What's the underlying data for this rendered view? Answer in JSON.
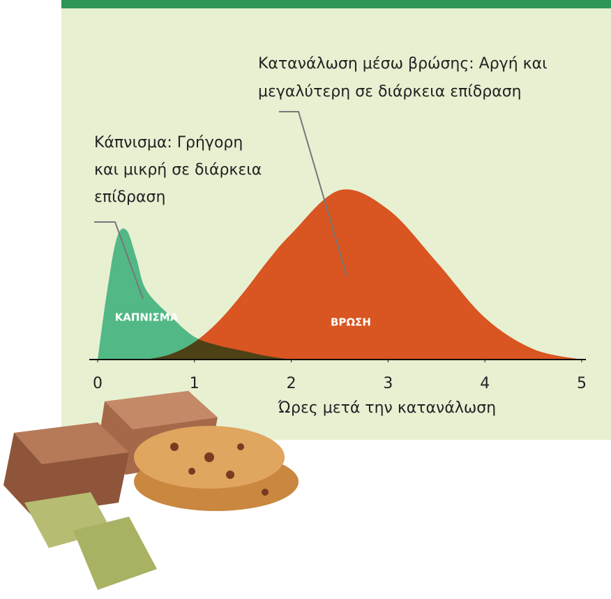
{
  "chart_data": {
    "type": "area",
    "x": [
      0,
      0.1,
      0.2,
      0.3,
      0.4,
      0.5,
      0.75,
      1,
      1.25,
      1.5,
      1.75,
      2,
      2.5,
      3,
      3.5,
      4,
      4.5,
      5
    ],
    "series": [
      {
        "name": "ΚΑΠΝΙΣΜΑ",
        "color": "#52b886",
        "values": [
          0,
          40,
          70,
          74,
          58,
          40,
          25,
          13,
          8,
          5,
          2,
          0,
          null,
          null,
          null,
          null,
          null,
          null
        ]
      },
      {
        "name": "ΒΡΩΣΗ",
        "color": "#ef5a28",
        "values": [
          null,
          null,
          null,
          null,
          null,
          0,
          3,
          10,
          22,
          38,
          56,
          72,
          97,
          86,
          56,
          24,
          6,
          0
        ]
      }
    ],
    "xlim": [
      0,
      5
    ],
    "xticks": [
      0,
      1,
      2,
      3,
      4,
      5
    ],
    "ylim": [
      0,
      100
    ],
    "x_label": "Ώρες μετά την κατανάλωση",
    "annotations": [
      {
        "lines": [
          "Κατανάλωση μέσω βρώσης: Αργή και",
          "μεγαλύτερη σε διάρκεια επίδραση"
        ]
      },
      {
        "lines": [
          "Κάπνισμα: Γρήγορη",
          "και μικρή σε διάρκεια",
          "επίδραση"
        ]
      }
    ]
  }
}
